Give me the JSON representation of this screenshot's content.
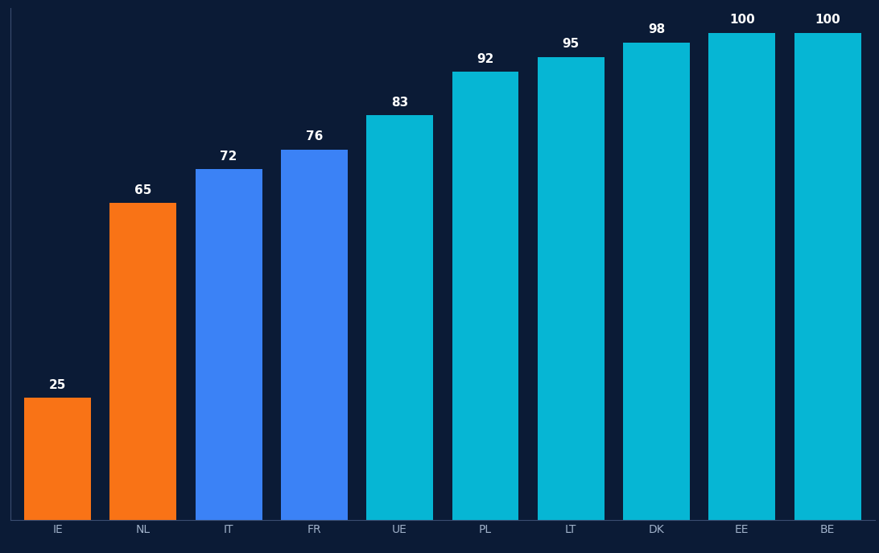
{
  "chart_data": {
    "type": "bar",
    "categories": [
      "IE",
      "NL",
      "IT",
      "FR",
      "UE",
      "PL",
      "LT",
      "DK",
      "EE",
      "BE"
    ],
    "values": [
      25,
      65,
      72,
      76,
      83,
      92,
      95,
      98,
      100,
      100
    ],
    "colors": [
      "#f97316",
      "#f97316",
      "#3b82f6",
      "#3b82f6",
      "#06b6d4",
      "#06b6d4",
      "#06b6d4",
      "#06b6d4",
      "#06b6d4",
      "#06b6d4"
    ],
    "ylim": [
      0,
      105
    ],
    "data_labels": true,
    "tick_labels": "x",
    "grid": false
  }
}
